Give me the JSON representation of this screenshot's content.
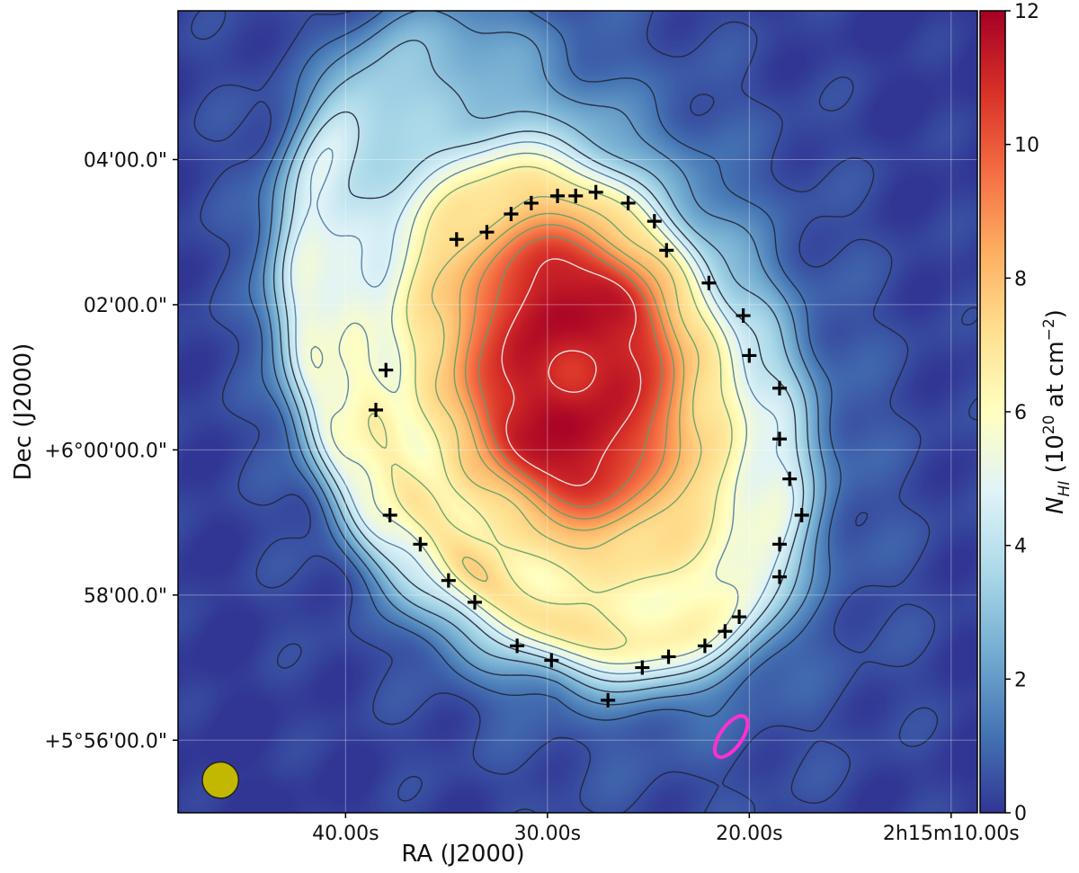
{
  "chart_data": {
    "type": "heatmap",
    "title": "",
    "xlabel": "RA (J2000)",
    "ylabel": "Dec (J2000)",
    "x_ticks": [
      "40.00s",
      "30.00s",
      "20.00s",
      "2h15m10.00s"
    ],
    "y_ticks": [
      "04'00.0\"",
      "02'00.0\"",
      "+6°00'00.0\"",
      "58'00.0\"",
      "+5°56'00.0\""
    ],
    "x_tick_values_sec": [
      40,
      30,
      20,
      10
    ],
    "y_tick_values_arcmin": [
      4,
      2,
      0,
      -2,
      -4
    ],
    "x_range_sec": [
      48.3,
      8.7
    ],
    "y_range_arcmin": [
      -5.0,
      6.05
    ],
    "grid": true,
    "colorbar": {
      "label_main": "N",
      "label_sub": "HI",
      "label_open": " (10",
      "label_exp": "20",
      "label_close": " at cm",
      "label_neg": "−2",
      "label_end": ")",
      "ticks": [
        "0",
        "2",
        "4",
        "6",
        "8",
        "10",
        "12"
      ],
      "range": [
        0,
        12
      ],
      "colormap": "RdYlBu_r"
    },
    "ring_markers": [
      [
        34.5,
        2.9
      ],
      [
        33.0,
        3.0
      ],
      [
        31.8,
        3.25
      ],
      [
        30.8,
        3.4
      ],
      [
        29.5,
        3.5
      ],
      [
        28.6,
        3.5
      ],
      [
        27.6,
        3.55
      ],
      [
        26.0,
        3.4
      ],
      [
        24.7,
        3.15
      ],
      [
        24.1,
        2.75
      ],
      [
        22.0,
        2.3
      ],
      [
        20.3,
        1.85
      ],
      [
        20.0,
        1.3
      ],
      [
        18.5,
        0.85
      ],
      [
        18.5,
        0.15
      ],
      [
        18.0,
        -0.4
      ],
      [
        17.4,
        -0.9
      ],
      [
        18.5,
        -1.3
      ],
      [
        18.5,
        -1.75
      ],
      [
        20.5,
        -2.3
      ],
      [
        21.2,
        -2.5
      ],
      [
        22.2,
        -2.7
      ],
      [
        24.0,
        -2.85
      ],
      [
        25.3,
        -3.0
      ],
      [
        38.0,
        1.1
      ],
      [
        38.5,
        0.55
      ],
      [
        37.8,
        -0.9
      ],
      [
        36.3,
        -1.3
      ],
      [
        34.9,
        -1.8
      ],
      [
        33.6,
        -2.1
      ],
      [
        31.5,
        -2.7
      ],
      [
        29.8,
        -2.9
      ],
      [
        27.0,
        -3.45
      ]
    ],
    "ellipse_marker": {
      "ra_sec": 20.9,
      "dec_arcmin": -3.95,
      "semi_a_arcmin": 0.33,
      "semi_b_arcmin": 0.15,
      "pa_deg": 35,
      "color": "#ff2fd2"
    },
    "beam": {
      "ra_sec": 46.2,
      "dec_arcmin": -4.55,
      "radius_arcmin": 0.25,
      "color": "#c2b800"
    },
    "contour_levels": [
      0.5,
      1.2,
      2,
      3,
      4,
      4.8,
      5.7,
      6.6,
      7.5,
      8.3,
      9.1,
      10,
      11,
      12,
      12.8,
      13.4
    ]
  }
}
